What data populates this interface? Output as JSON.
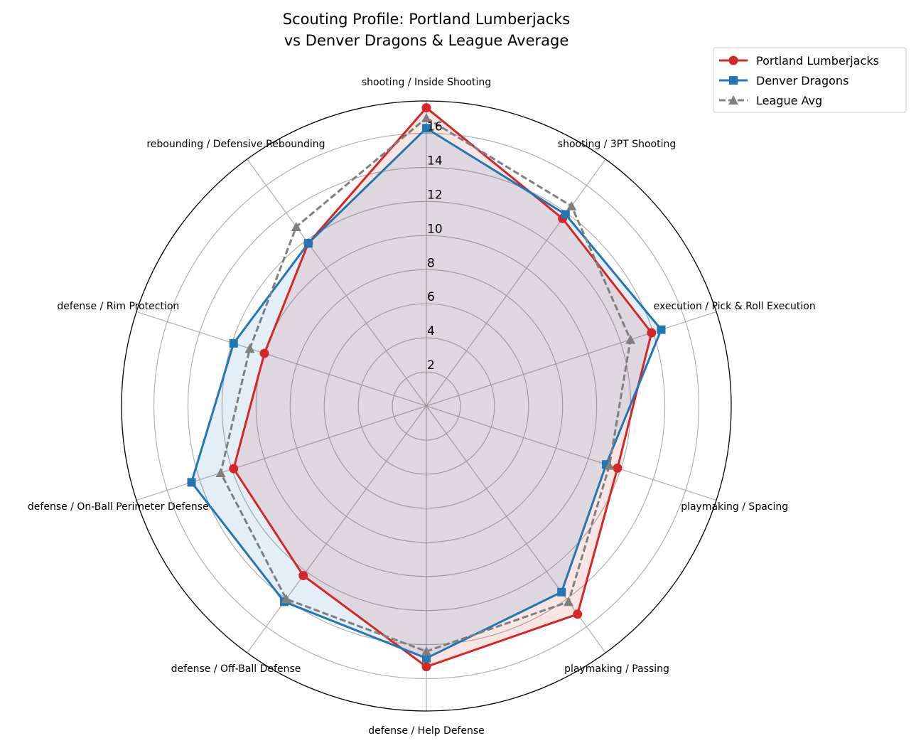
{
  "chart_data": {
    "type": "radar",
    "title": "Scouting Profile: Portland Lumberjacks\nvs Denver Dragons & League Average",
    "title_lines": [
      "Scouting Profile: Portland Lumberjacks",
      "vs Denver Dragons & League Average"
    ],
    "categories": [
      "shooting / Inside Shooting",
      "shooting / 3PT Shooting",
      "execution / Pick & Roll Execution",
      "playmaking / Spacing",
      "playmaking / Passing",
      "defense / Help Defense",
      "defense / Off-Ball Defense",
      "defense / On-Ball Perimeter Defense",
      "defense / Rim Protection",
      "rebounding / Defensive Rebounding"
    ],
    "radial_ticks": [
      "2",
      "4",
      "6",
      "8",
      "10",
      "12",
      "14",
      "16"
    ],
    "rlim": [
      0,
      17.9
    ],
    "grid": true,
    "legend_position": "top-right",
    "series": [
      {
        "name": "Portland Lumberjacks",
        "color": "#d62728",
        "marker": "circle",
        "linestyle": "solid",
        "fill_alpha": 0.12,
        "values": [
          17.5,
          13.6,
          13.9,
          11.8,
          15.1,
          15.3,
          12.3,
          11.9,
          10.0,
          11.8
        ]
      },
      {
        "name": "Denver Dragons",
        "color": "#1f77b4",
        "marker": "square",
        "linestyle": "solid",
        "fill_alpha": 0.12,
        "values": [
          16.3,
          13.9,
          14.5,
          11.1,
          13.5,
          14.8,
          14.2,
          14.5,
          11.9,
          11.8
        ]
      },
      {
        "name": "League Avg",
        "color": "#7f7f7f",
        "marker": "triangle",
        "linestyle": "dashed",
        "fill_alpha": 0,
        "values": [
          16.9,
          14.5,
          12.6,
          11.3,
          14.2,
          14.4,
          14.0,
          12.7,
          10.9,
          13.0
        ]
      }
    ]
  }
}
